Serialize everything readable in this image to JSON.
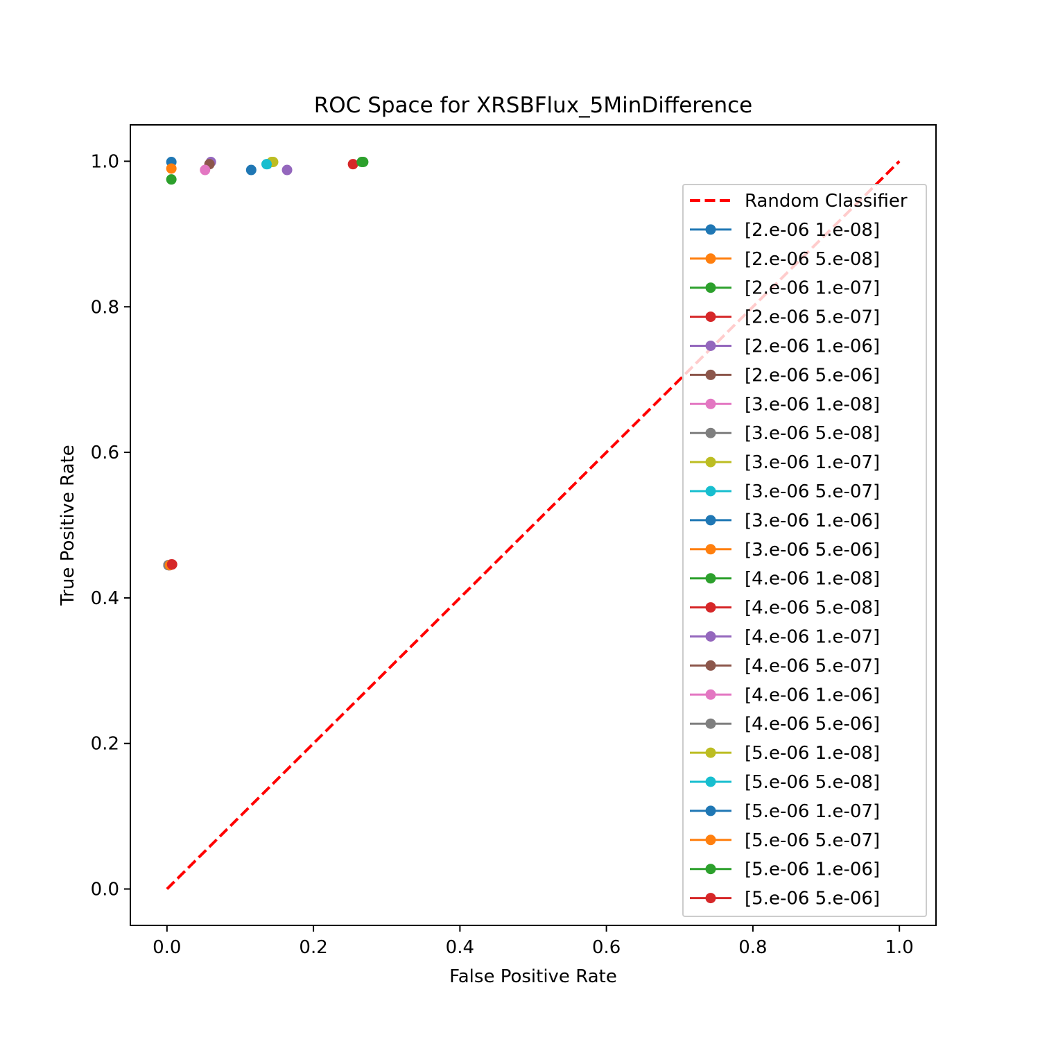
{
  "chart_data": {
    "type": "scatter",
    "title": "ROC Space for XRSBFlux_5MinDifference",
    "xlabel": "False Positive Rate",
    "ylabel": "True Positive Rate",
    "xlim": [
      -0.05,
      1.05
    ],
    "ylim": [
      -0.05,
      1.05
    ],
    "xticks": [
      0.0,
      0.2,
      0.4,
      0.6,
      0.8,
      1.0
    ],
    "xtick_labels": [
      "0.0",
      "0.2",
      "0.4",
      "0.6",
      "0.8",
      "1.0"
    ],
    "yticks": [
      0.0,
      0.2,
      0.4,
      0.6,
      0.8,
      1.0
    ],
    "ytick_labels": [
      "0.0",
      "0.2",
      "0.4",
      "0.6",
      "0.8",
      "1.0"
    ],
    "grid": false,
    "legend_position": "right",
    "reference_line": {
      "name": "Random Classifier",
      "x": [
        0,
        1
      ],
      "y": [
        0,
        1
      ],
      "color": "#ff0000",
      "style": "dashed"
    },
    "series": [
      {
        "name": "[2.e-06 1.e-08]",
        "color": "#1f77b4",
        "x": 0.006,
        "y": 0.999
      },
      {
        "name": "[2.e-06 5.e-08]",
        "color": "#ff7f0e",
        "x": 0.006,
        "y": 0.99
      },
      {
        "name": "[2.e-06 1.e-07]",
        "color": "#2ca02c",
        "x": 0.006,
        "y": 0.975
      },
      {
        "name": "[2.e-06 5.e-07]",
        "color": "#d62728",
        "x": 0.006,
        "y": 0.446
      },
      {
        "name": "[2.e-06 1.e-06]",
        "color": "#9467bd",
        "x": 0.06,
        "y": 0.999
      },
      {
        "name": "[2.e-06 5.e-06]",
        "color": "#8c564b",
        "x": 0.058,
        "y": 0.996
      },
      {
        "name": "[3.e-06 1.e-08]",
        "color": "#e377c2",
        "x": 0.052,
        "y": 0.988
      },
      {
        "name": "[3.e-06 5.e-08]",
        "color": "#7f7f7f",
        "x": 0.002,
        "y": 0.445
      },
      {
        "name": "[3.e-06 1.e-07]",
        "color": "#bcbd22",
        "x": 0.145,
        "y": 0.999
      },
      {
        "name": "[3.e-06 5.e-07]",
        "color": "#17becf",
        "x": 0.137,
        "y": 0.996
      },
      {
        "name": "[3.e-06 1.e-06]",
        "color": "#1f77b4",
        "x": 0.115,
        "y": 0.988
      },
      {
        "name": "[3.e-06 5.e-06]",
        "color": "#ff7f0e",
        "x": 0.004,
        "y": 0.445
      },
      {
        "name": "[4.e-06 1.e-08]",
        "color": "#2ca02c",
        "x": 0.268,
        "y": 0.999
      },
      {
        "name": "[4.e-06 5.e-08]",
        "color": "#d62728",
        "x": 0.254,
        "y": 0.996
      },
      {
        "name": "[4.e-06 1.e-07]",
        "color": "#9467bd",
        "x": 0.164,
        "y": 0.988
      },
      {
        "name": "[4.e-06 5.e-07]",
        "color": "#8c564b",
        "x": 0.002,
        "y": 0.445
      },
      {
        "name": "[4.e-06 1.e-06]",
        "color": "#e377c2",
        "x": 0.004,
        "y": 0.445
      },
      {
        "name": "[4.e-06 5.e-06]",
        "color": "#7f7f7f",
        "x": 0.002,
        "y": 0.445
      },
      {
        "name": "[5.e-06 1.e-08]",
        "color": "#bcbd22",
        "x": 0.143,
        "y": 0.999
      },
      {
        "name": "[5.e-06 5.e-08]",
        "color": "#17becf",
        "x": 0.136,
        "y": 0.996
      },
      {
        "name": "[5.e-06 1.e-07]",
        "color": "#1f77b4",
        "x": 0.004,
        "y": 0.445
      },
      {
        "name": "[5.e-06 5.e-07]",
        "color": "#ff7f0e",
        "x": 0.004,
        "y": 0.445
      },
      {
        "name": "[5.e-06 1.e-06]",
        "color": "#2ca02c",
        "x": 0.266,
        "y": 0.999
      },
      {
        "name": "[5.e-06 5.e-06]",
        "color": "#d62728",
        "x": 0.007,
        "y": 0.446
      }
    ]
  }
}
